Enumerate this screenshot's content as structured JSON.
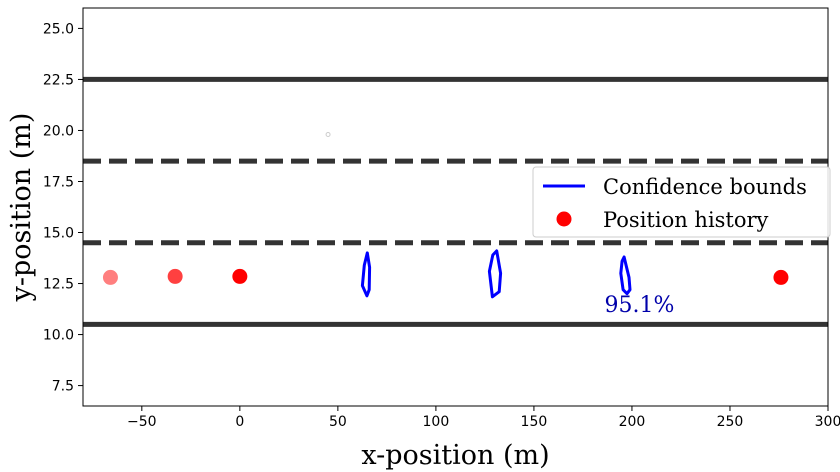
{
  "chart_data": {
    "type": "scatter",
    "title": "",
    "xlabel": "x-position (m)",
    "ylabel": "y-position (m)",
    "xlim": [
      -80,
      300
    ],
    "ylim": [
      6.5,
      26
    ],
    "xticks": [
      -50,
      0,
      50,
      100,
      150,
      200,
      250,
      300
    ],
    "yticks": [
      7.5,
      10.0,
      12.5,
      15.0,
      17.5,
      20.0,
      22.5,
      25.0
    ],
    "xtick_labels": [
      "−50",
      "0",
      "50",
      "100",
      "150",
      "200",
      "250",
      "300"
    ],
    "ytick_labels": [
      "7.5",
      "10.0",
      "12.5",
      "15.0",
      "17.5",
      "20.0",
      "22.5",
      "25.0"
    ],
    "grid": false,
    "lane_lines": [
      {
        "y": 22.5,
        "style": "solid"
      },
      {
        "y": 18.5,
        "style": "dashed"
      },
      {
        "y": 14.5,
        "style": "dashed"
      },
      {
        "y": 10.5,
        "style": "solid"
      }
    ],
    "series": [
      {
        "name": "Position history",
        "color": "#ff0000",
        "points": [
          {
            "x": -66,
            "y": 12.8,
            "alpha": 0.5
          },
          {
            "x": -33,
            "y": 12.85,
            "alpha": 0.75
          },
          {
            "x": 0,
            "y": 12.85,
            "alpha": 1.0
          },
          {
            "x": 276,
            "y": 12.8,
            "alpha": 1.0
          }
        ]
      },
      {
        "name": "Confidence bounds",
        "color": "#0000ff",
        "contours": [
          [
            [
              65,
              14.0
            ],
            [
              66.2,
              13.3
            ],
            [
              66,
              12.2
            ],
            [
              64.8,
              11.9
            ],
            [
              62.5,
              12.4
            ],
            [
              63.5,
              13.4
            ],
            [
              65,
              14.0
            ]
          ],
          [
            [
              131,
              14.1
            ],
            [
              133,
              13.0
            ],
            [
              132.3,
              12.1
            ],
            [
              128.8,
              11.85
            ],
            [
              127.3,
              13.1
            ],
            [
              129,
              13.9
            ],
            [
              131,
              14.1
            ]
          ],
          [
            [
              196,
              13.8
            ],
            [
              198.5,
              12.8
            ],
            [
              199,
              12.2
            ],
            [
              197.5,
              12.0
            ],
            [
              195.5,
              12.2
            ],
            [
              194.3,
              13.0
            ],
            [
              195,
              13.6
            ],
            [
              196,
              13.8
            ]
          ]
        ]
      },
      {
        "name": "stray marker",
        "color": "#cccccc",
        "points": [
          {
            "x": 45,
            "y": 19.8
          }
        ]
      }
    ],
    "legend": {
      "position": "center-right",
      "entries": [
        {
          "label": "Confidence bounds",
          "kind": "line",
          "color": "#0000ff"
        },
        {
          "label": "Position history",
          "kind": "marker",
          "color": "#ff0000"
        }
      ]
    },
    "annotations": [
      {
        "text": "95.1%",
        "x": 186,
        "y": 11.1,
        "color": "#0000aa"
      }
    ]
  }
}
